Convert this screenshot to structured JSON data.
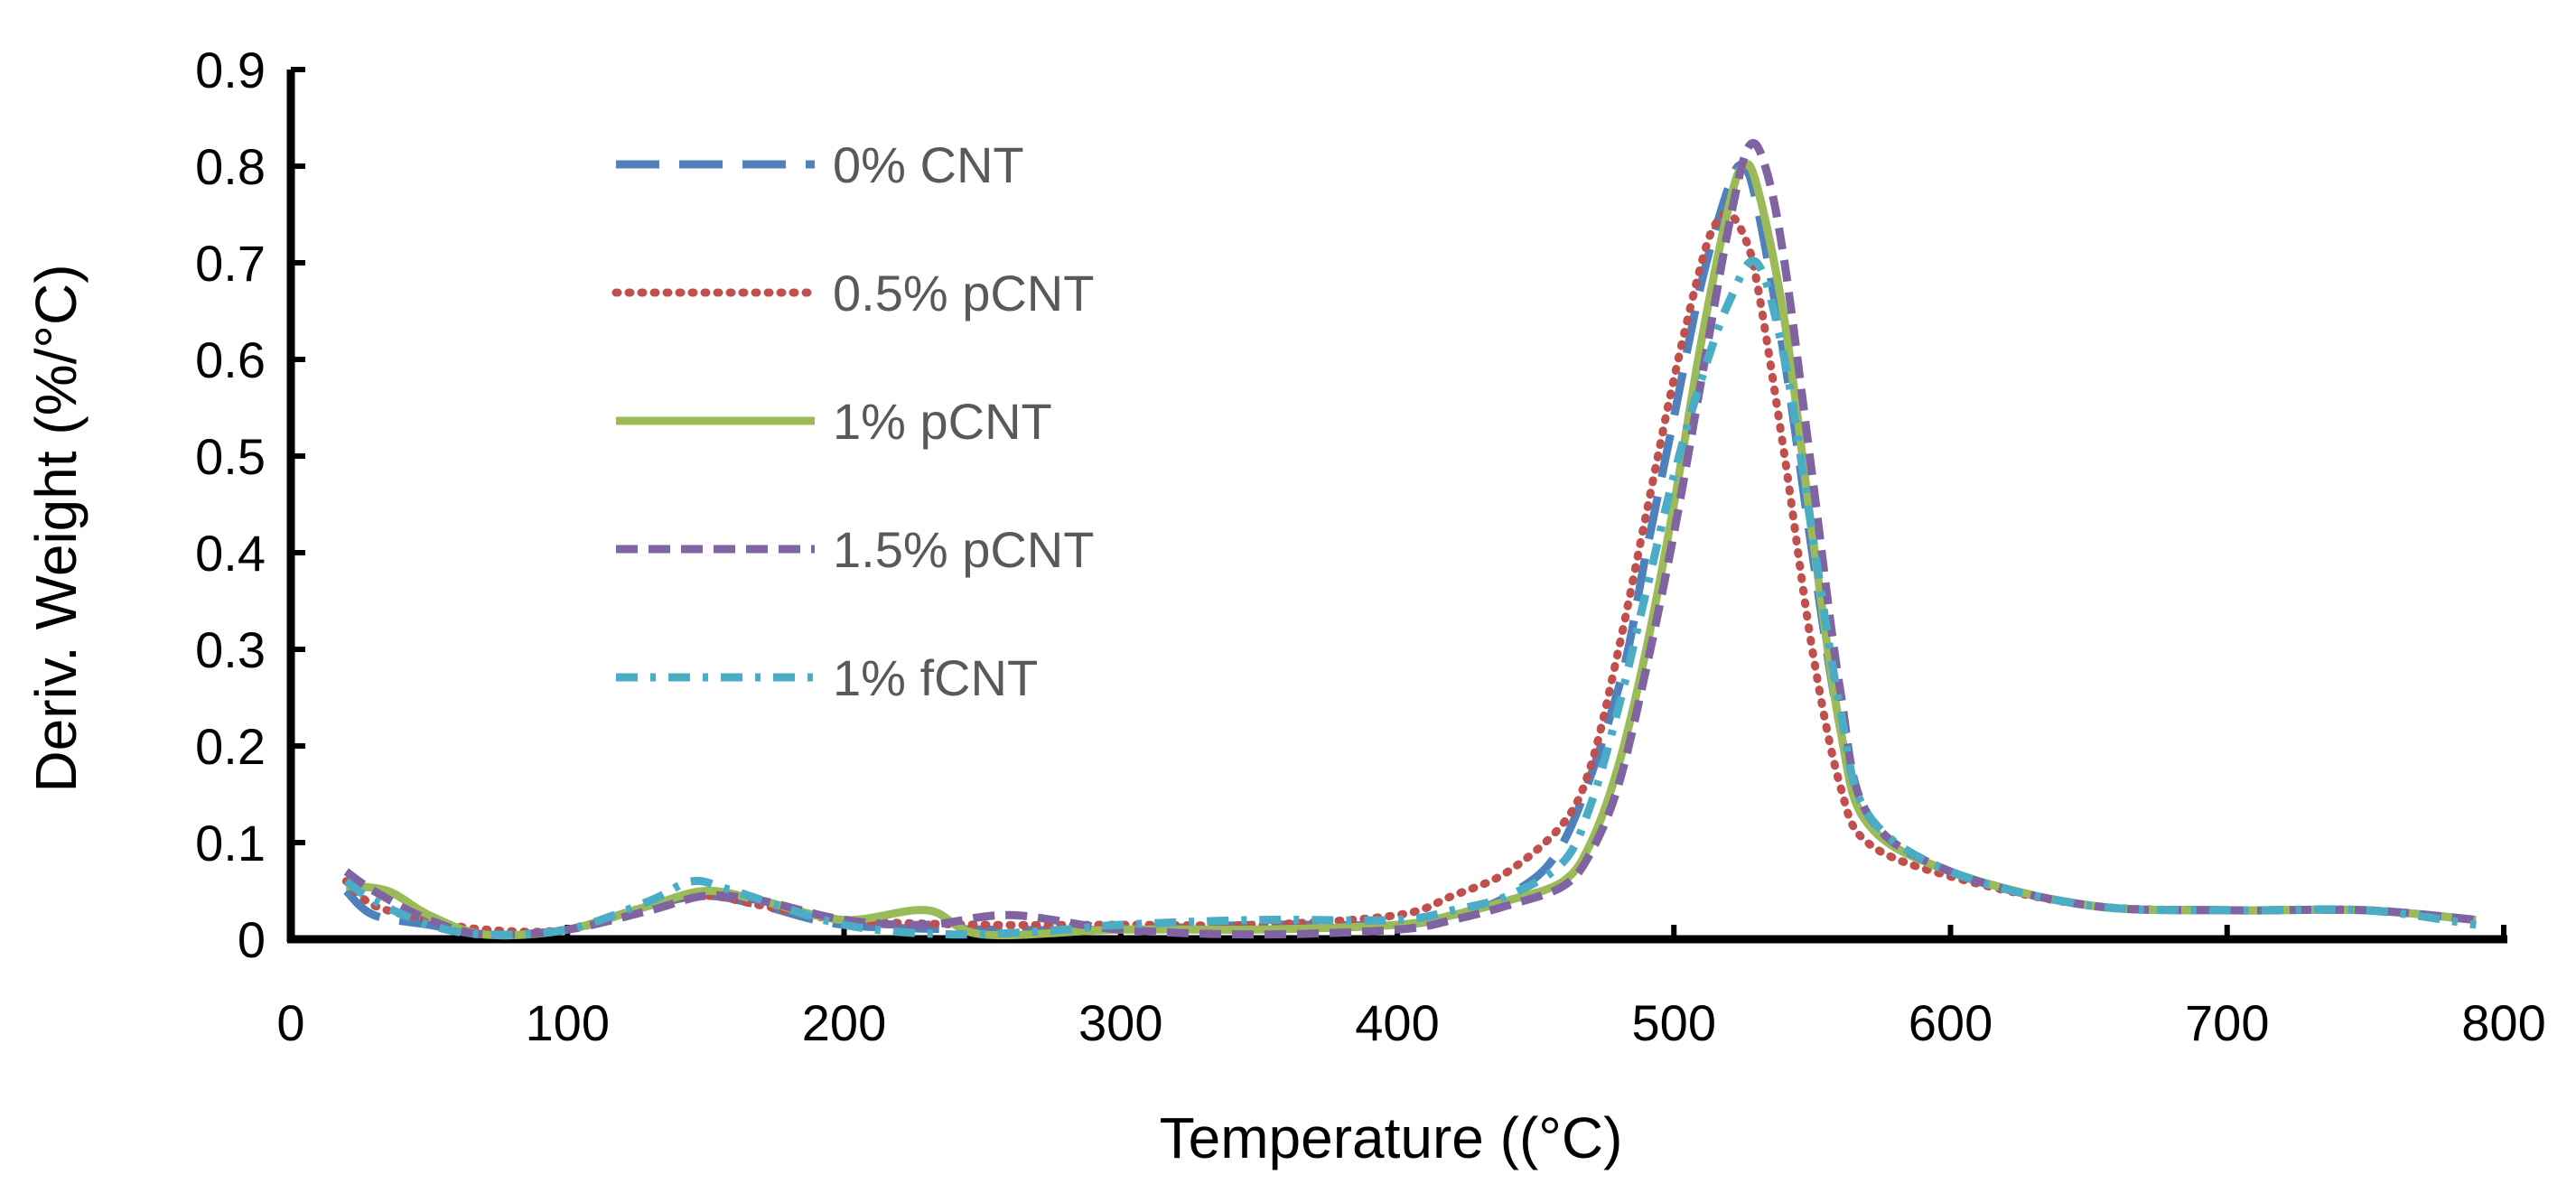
{
  "chart_data": {
    "type": "line",
    "title": "",
    "xlabel": "Temperature ((°C)",
    "ylabel": "Deriv. Weight (%/°C)",
    "xlim": [
      0,
      800
    ],
    "ylim": [
      0,
      0.9
    ],
    "xticks": [
      0,
      100,
      200,
      300,
      400,
      500,
      600,
      700,
      800
    ],
    "xtick_labels": [
      "0",
      "100",
      "200",
      "300",
      "400",
      "500",
      "600",
      "700",
      "800"
    ],
    "yticks": [
      0,
      0.1,
      0.2,
      0.3,
      0.4,
      0.5,
      0.6,
      0.7,
      0.8,
      0.9
    ],
    "ytick_labels": [
      "0",
      "0.1",
      "0.2",
      "0.3",
      "0.4",
      "0.5",
      "0.6",
      "0.7",
      "0.8",
      "0.9"
    ],
    "grid": false,
    "legend_position": "top-left",
    "series": [
      {
        "name": "0% CNT",
        "color": "#4F81BD",
        "dash": "long-dash",
        "x": [
          20,
          30,
          50,
          70,
          100,
          130,
          150,
          170,
          200,
          250,
          300,
          350,
          400,
          420,
          440,
          460,
          480,
          490,
          500,
          510,
          520,
          525,
          530,
          540,
          550,
          560,
          570,
          600,
          650,
          700,
          750,
          790
        ],
        "y": [
          0.05,
          0.025,
          0.015,
          0.005,
          0.01,
          0.035,
          0.045,
          0.035,
          0.015,
          0.01,
          0.01,
          0.015,
          0.015,
          0.025,
          0.045,
          0.1,
          0.26,
          0.4,
          0.54,
          0.68,
          0.78,
          0.8,
          0.76,
          0.6,
          0.4,
          0.22,
          0.12,
          0.07,
          0.035,
          0.03,
          0.03,
          0.02
        ]
      },
      {
        "name": "0.5% pCNT",
        "color": "#C0504D",
        "dash": "dotted",
        "x": [
          20,
          30,
          50,
          70,
          100,
          130,
          150,
          170,
          200,
          250,
          300,
          350,
          400,
          420,
          440,
          460,
          470,
          480,
          490,
          500,
          510,
          515,
          520,
          525,
          530,
          540,
          550,
          560,
          570,
          600,
          650,
          700,
          750,
          790
        ],
        "y": [
          0.06,
          0.035,
          0.02,
          0.01,
          0.01,
          0.035,
          0.045,
          0.035,
          0.02,
          0.015,
          0.015,
          0.015,
          0.025,
          0.045,
          0.07,
          0.12,
          0.18,
          0.3,
          0.44,
          0.58,
          0.7,
          0.74,
          0.75,
          0.73,
          0.68,
          0.5,
          0.3,
          0.16,
          0.1,
          0.065,
          0.035,
          0.03,
          0.03,
          0.02
        ]
      },
      {
        "name": "1% pCNT",
        "color": "#9BBB59",
        "dash": "solid",
        "x": [
          20,
          35,
          50,
          70,
          100,
          130,
          150,
          170,
          200,
          230,
          250,
          300,
          350,
          400,
          420,
          440,
          460,
          470,
          480,
          490,
          500,
          510,
          520,
          525,
          530,
          540,
          550,
          560,
          570,
          600,
          650,
          700,
          750,
          790
        ],
        "y": [
          0.055,
          0.05,
          0.025,
          0.005,
          0.01,
          0.035,
          0.05,
          0.04,
          0.02,
          0.03,
          0.005,
          0.01,
          0.01,
          0.015,
          0.025,
          0.04,
          0.06,
          0.1,
          0.18,
          0.3,
          0.45,
          0.62,
          0.76,
          0.8,
          0.78,
          0.64,
          0.42,
          0.22,
          0.12,
          0.07,
          0.035,
          0.03,
          0.03,
          0.02
        ]
      },
      {
        "name": "1.5% pCNT",
        "color": "#8064A2",
        "dash": "dashed",
        "x": [
          20,
          30,
          50,
          70,
          100,
          130,
          150,
          170,
          200,
          230,
          260,
          300,
          350,
          400,
          420,
          440,
          460,
          470,
          480,
          490,
          500,
          510,
          520,
          527,
          533,
          540,
          550,
          560,
          570,
          600,
          650,
          700,
          750,
          790
        ],
        "y": [
          0.07,
          0.05,
          0.02,
          0.005,
          0.01,
          0.03,
          0.045,
          0.04,
          0.02,
          0.015,
          0.025,
          0.01,
          0.005,
          0.01,
          0.02,
          0.035,
          0.055,
          0.09,
          0.16,
          0.28,
          0.42,
          0.58,
          0.74,
          0.82,
          0.8,
          0.7,
          0.48,
          0.26,
          0.13,
          0.07,
          0.035,
          0.03,
          0.03,
          0.02
        ]
      },
      {
        "name": "1% fCNT",
        "color": "#4BACC6",
        "dash": "dash-dot",
        "x": [
          20,
          30,
          50,
          70,
          100,
          130,
          145,
          160,
          200,
          240,
          280,
          300,
          350,
          400,
          420,
          440,
          460,
          470,
          480,
          490,
          500,
          510,
          520,
          530,
          540,
          550,
          560,
          570,
          600,
          650,
          700,
          750,
          790
        ],
        "y": [
          0.06,
          0.04,
          0.015,
          0.005,
          0.01,
          0.04,
          0.06,
          0.05,
          0.015,
          0.005,
          0.01,
          0.015,
          0.02,
          0.02,
          0.03,
          0.045,
          0.08,
          0.14,
          0.24,
          0.36,
          0.48,
          0.58,
          0.66,
          0.7,
          0.6,
          0.42,
          0.24,
          0.13,
          0.07,
          0.035,
          0.03,
          0.03,
          0.015
        ]
      }
    ]
  }
}
